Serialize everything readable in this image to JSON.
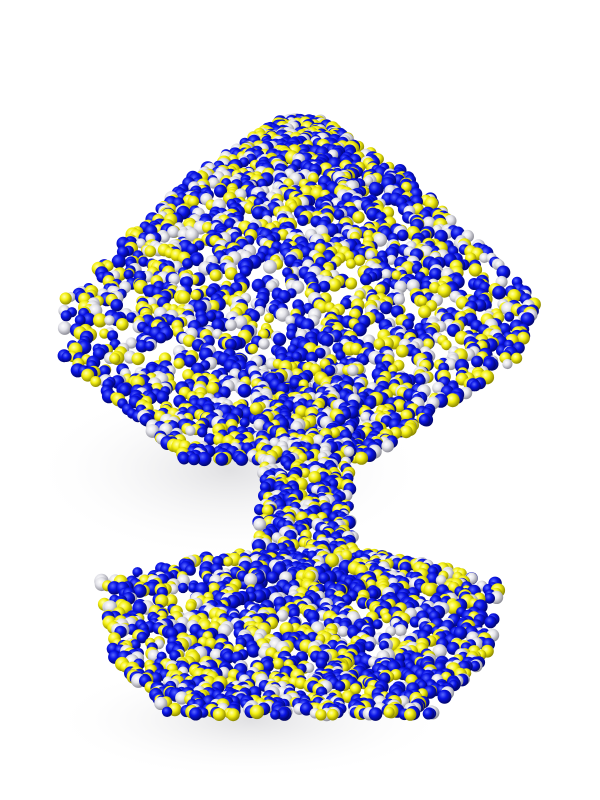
{
  "scene": {
    "subject": "particle-mushroom-sculpture",
    "background_color": "#ffffff",
    "shadow_color": "#d0d0d4",
    "particle_colors": [
      {
        "name": "blue",
        "hex": "#0a14e6",
        "dark_hex": "#02066a",
        "light_hex": "#5a6aff",
        "weight": 0.5
      },
      {
        "name": "yellow",
        "hex": "#f4f012",
        "dark_hex": "#8c8800",
        "light_hex": "#ffffb0",
        "weight": 0.3
      },
      {
        "name": "white",
        "hex": "#e4e4ea",
        "dark_hex": "#8e8e98",
        "light_hex": "#ffffff",
        "weight": 0.2
      }
    ],
    "regions": [
      "mushroom-cap",
      "mushroom-stem",
      "mushroom-base"
    ]
  }
}
